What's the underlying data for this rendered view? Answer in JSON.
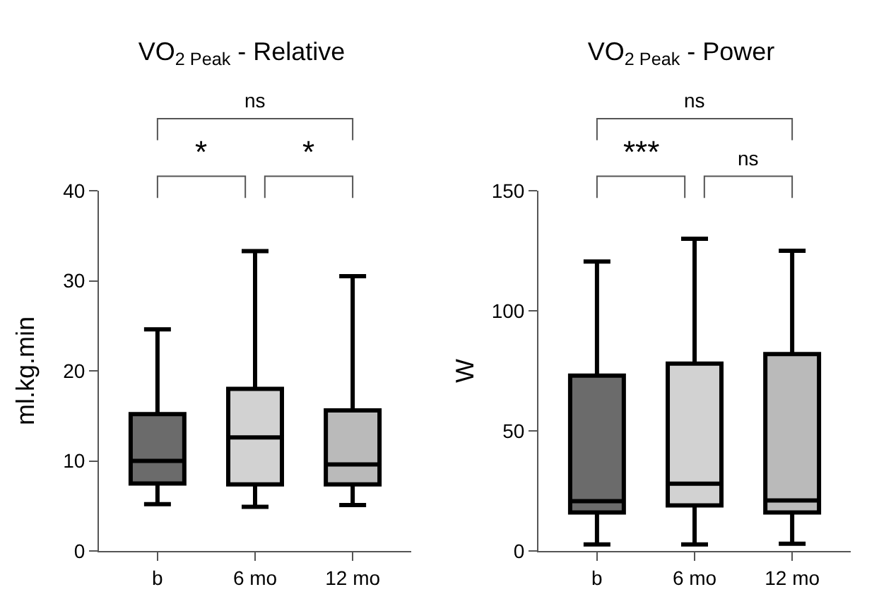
{
  "chart_data": [
    {
      "type": "box",
      "title": "VO$_{2 Peak}$ - Relative",
      "ylabel": "ml.kg.min",
      "categories": [
        "b",
        "6 mo",
        "12 mo"
      ],
      "colors": [
        "#6b6b6b",
        "#d2d2d2",
        "#bababa"
      ],
      "boxes": [
        {
          "low": 5.2,
          "q1": 7.5,
          "median": 10,
          "q3": 15.2,
          "high": 24.6
        },
        {
          "low": 4.9,
          "q1": 7.4,
          "median": 12.6,
          "q3": 18,
          "high": 33.3
        },
        {
          "low": 5.1,
          "q1": 7.4,
          "median": 9.6,
          "q3": 15.6,
          "high": 30.5
        }
      ],
      "ylim": [
        0,
        40
      ],
      "yticks": [
        0,
        10,
        20,
        30,
        40
      ],
      "grid": false,
      "annotations": [
        "*",
        "*",
        "ns"
      ]
    },
    {
      "type": "box",
      "title": "VO$_{2 Peak}$ - Power",
      "ylabel": "W",
      "categories": [
        "b",
        "6 mo",
        "12 mo"
      ],
      "colors": [
        "#6b6b6b",
        "#d2d2d2",
        "#bababa"
      ],
      "boxes": [
        {
          "low": 2.7,
          "q1": 16,
          "median": 20.7,
          "q3": 73,
          "high": 120.5
        },
        {
          "low": 2.7,
          "q1": 19,
          "median": 28,
          "q3": 78,
          "high": 130
        },
        {
          "low": 3,
          "q1": 16,
          "median": 21,
          "q3": 82,
          "high": 125
        }
      ],
      "ylim": [
        0,
        150
      ],
      "yticks": [
        0,
        50,
        100,
        150
      ],
      "grid": false,
      "annotations": [
        "***",
        "ns",
        "ns"
      ]
    }
  ]
}
